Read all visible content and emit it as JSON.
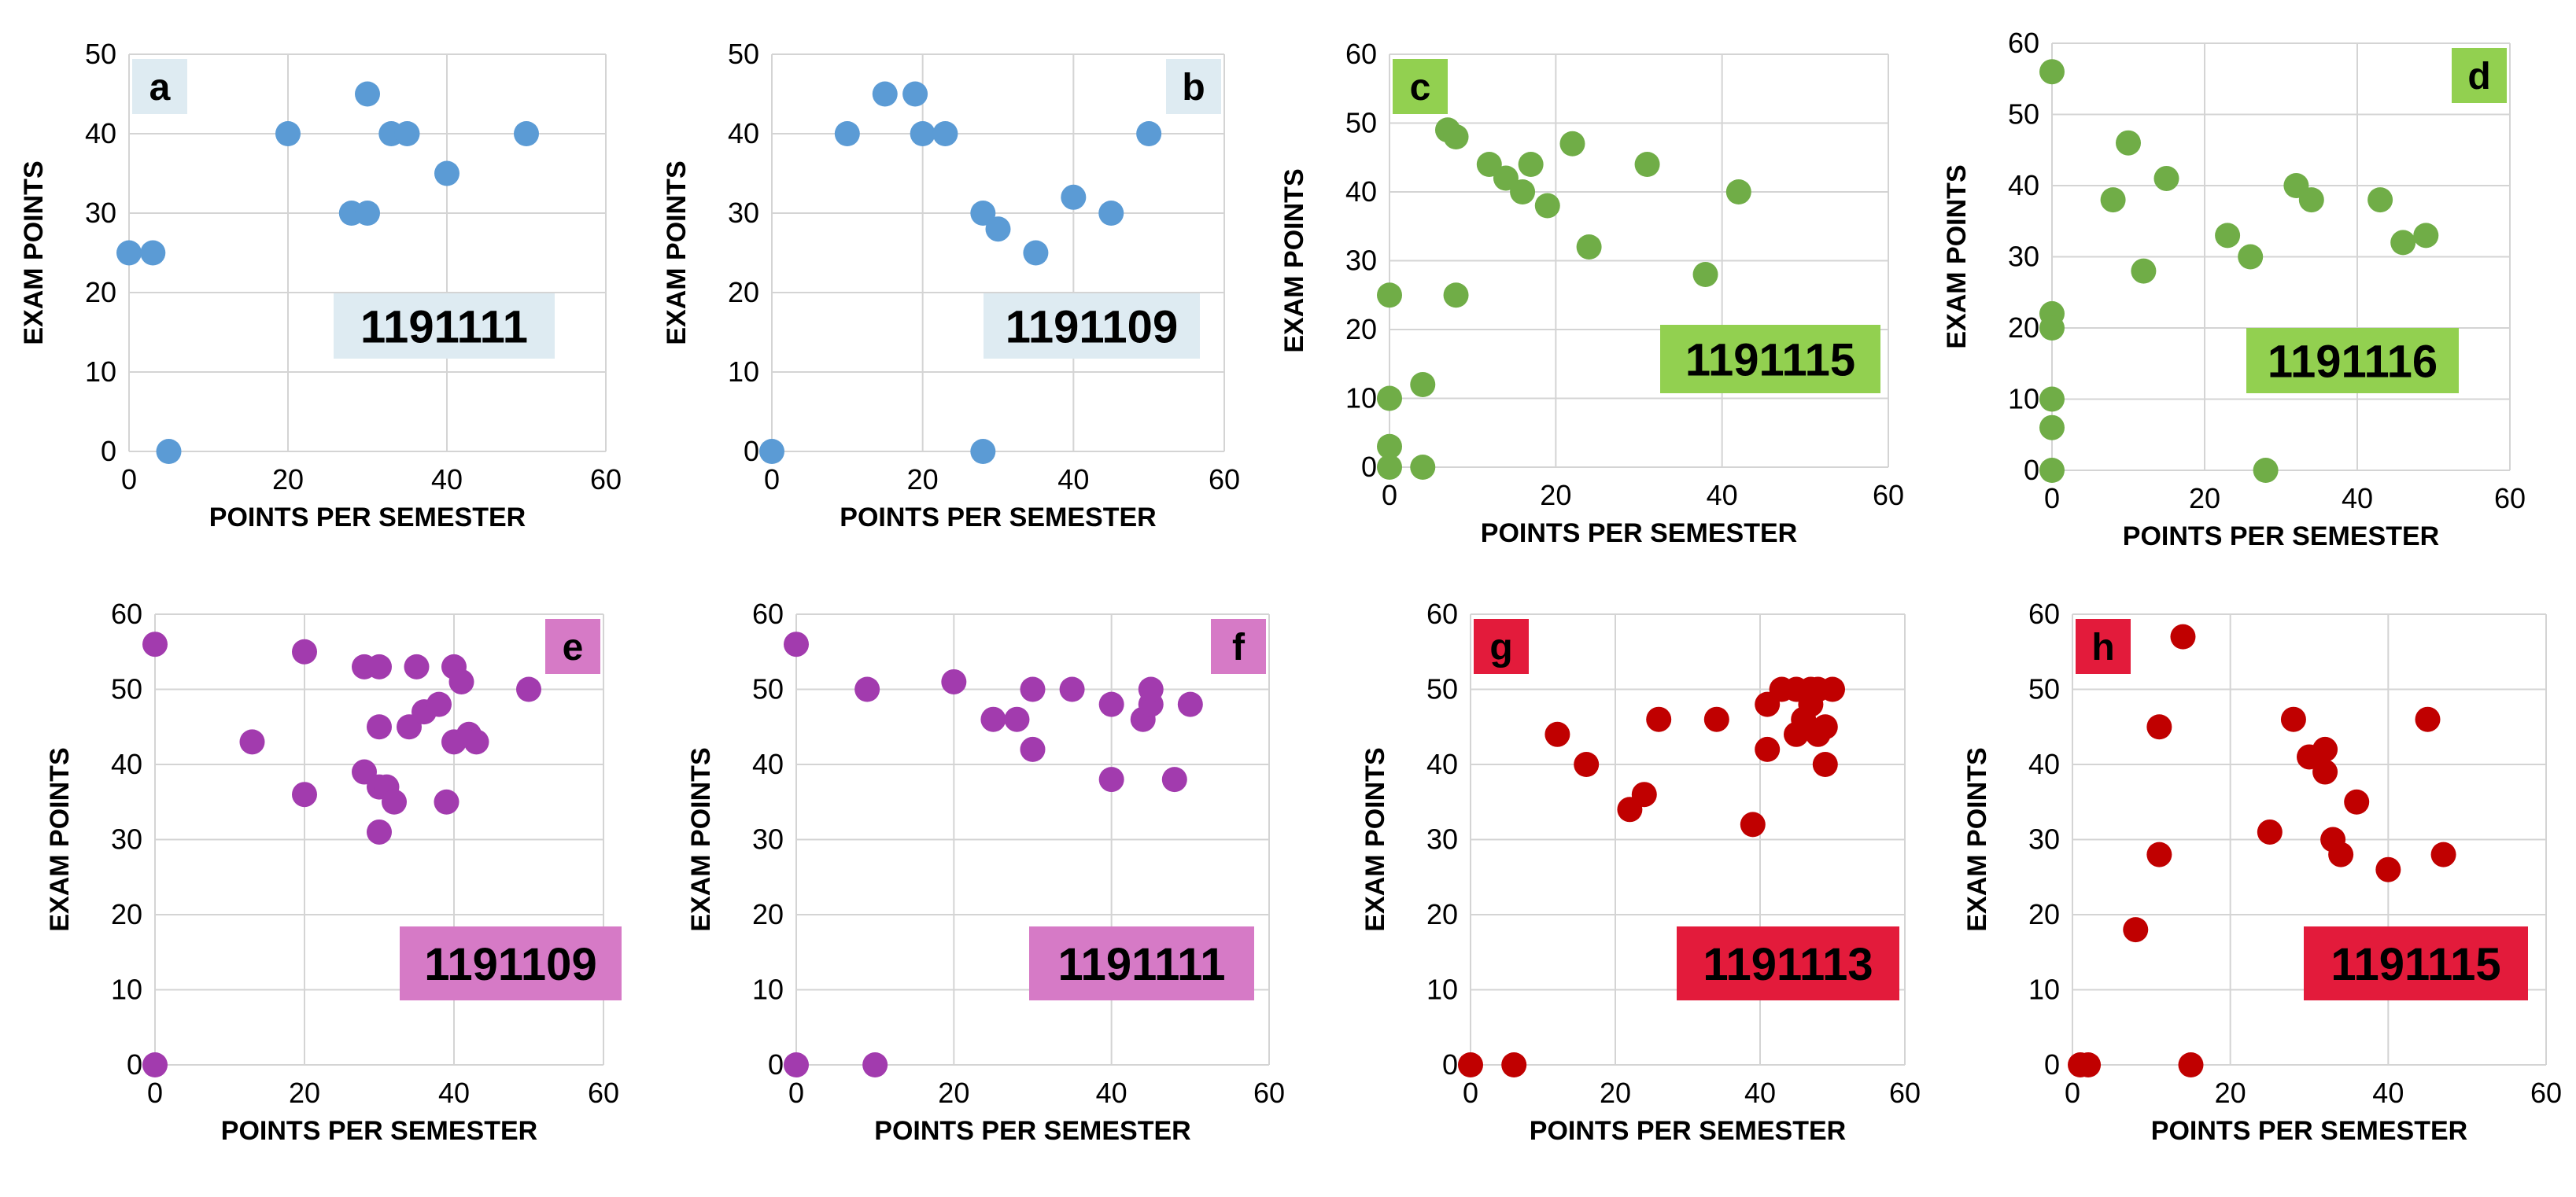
{
  "chart_data": [
    {
      "type": "scatter",
      "panel": "a",
      "class_id": "1191111",
      "color": "#5b9bd5",
      "label_bg": "#deebf2",
      "xlabel": "POINTS PER SEMESTER",
      "ylabel": "EXAM POINTS",
      "xlim": [
        0,
        60
      ],
      "ylim": [
        0,
        50
      ],
      "xticks": [
        "0",
        "20",
        "40",
        "60"
      ],
      "yticks": [
        "0",
        "10",
        "20",
        "30",
        "40",
        "50"
      ],
      "x": [
        0,
        3,
        5,
        20,
        28,
        30,
        30,
        33,
        35,
        40,
        50
      ],
      "y": [
        25,
        25,
        0,
        40,
        30,
        30,
        45,
        40,
        40,
        35,
        40
      ]
    },
    {
      "type": "scatter",
      "panel": "b",
      "class_id": "1191109",
      "color": "#5b9bd5",
      "label_bg": "#deebf2",
      "xlabel": "POINTS PER SEMESTER",
      "ylabel": "EXAM POINTS",
      "xlim": [
        0,
        60
      ],
      "ylim": [
        0,
        50
      ],
      "xticks": [
        "0",
        "20",
        "40",
        "60"
      ],
      "yticks": [
        "0",
        "10",
        "20",
        "30",
        "40",
        "50"
      ],
      "x": [
        0,
        10,
        15,
        19,
        20,
        23,
        28,
        28,
        30,
        35,
        40,
        45,
        50
      ],
      "y": [
        0,
        40,
        45,
        45,
        40,
        40,
        30,
        0,
        28,
        25,
        32,
        30,
        40
      ]
    },
    {
      "type": "scatter",
      "panel": "c",
      "class_id": "1191115",
      "color": "#70ad47",
      "label_bg": "#92d050",
      "xlabel": "POINTS PER SEMESTER",
      "ylabel": "EXAM POINTS",
      "xlim": [
        0,
        60
      ],
      "ylim": [
        0,
        60
      ],
      "xticks": [
        "0",
        "20",
        "40",
        "60"
      ],
      "yticks": [
        "0",
        "10",
        "20",
        "30",
        "40",
        "50",
        "60"
      ],
      "x": [
        0,
        0,
        0,
        0,
        4,
        4,
        7,
        8,
        8,
        12,
        14,
        16,
        17,
        19,
        22,
        24,
        31,
        38,
        42
      ],
      "y": [
        0,
        3,
        10,
        25,
        0,
        12,
        49,
        48,
        25,
        44,
        42,
        40,
        44,
        38,
        47,
        32,
        44,
        28,
        40
      ]
    },
    {
      "type": "scatter",
      "panel": "d",
      "class_id": "1191116",
      "color": "#70ad47",
      "label_bg": "#92d050",
      "xlabel": "POINTS PER SEMESTER",
      "ylabel": "EXAM POINTS",
      "xlim": [
        0,
        60
      ],
      "ylim": [
        0,
        60
      ],
      "xticks": [
        "0",
        "20",
        "40",
        "60"
      ],
      "yticks": [
        "0",
        "10",
        "20",
        "30",
        "40",
        "50",
        "60"
      ],
      "x": [
        0,
        0,
        0,
        0,
        0,
        0,
        8,
        10,
        12,
        15,
        23,
        26,
        28,
        32,
        34,
        43,
        46,
        49
      ],
      "y": [
        56,
        22,
        20,
        10,
        6,
        0,
        38,
        46,
        28,
        41,
        33,
        30,
        0,
        40,
        38,
        38,
        32,
        33
      ]
    },
    {
      "type": "scatter",
      "panel": "e",
      "class_id": "1191109",
      "color": "#a23bae",
      "label_bg": "#d67ac6",
      "xlabel": "POINTS PER SEMESTER",
      "ylabel": "EXAM POINTS",
      "xlim": [
        0,
        60
      ],
      "ylim": [
        0,
        60
      ],
      "xticks": [
        "0",
        "20",
        "40",
        "60"
      ],
      "yticks": [
        "0",
        "10",
        "20",
        "30",
        "40",
        "50",
        "60"
      ],
      "x": [
        0,
        0,
        13,
        20,
        20,
        28,
        28,
        30,
        30,
        30,
        30,
        31,
        32,
        34,
        35,
        36,
        38,
        39,
        40,
        40,
        41,
        42,
        43,
        50
      ],
      "y": [
        56,
        0,
        43,
        55,
        36,
        53,
        39,
        53,
        45,
        37,
        31,
        37,
        35,
        45,
        53,
        47,
        48,
        35,
        53,
        43,
        51,
        44,
        43,
        50
      ]
    },
    {
      "type": "scatter",
      "panel": "f",
      "class_id": "1191111",
      "color": "#a23bae",
      "label_bg": "#d67ac6",
      "xlabel": "POINTS PER SEMESTER",
      "ylabel": "EXAM POINTS",
      "xlim": [
        0,
        60
      ],
      "ylim": [
        0,
        60
      ],
      "xticks": [
        "0",
        "20",
        "40",
        "60"
      ],
      "yticks": [
        "0",
        "10",
        "20",
        "30",
        "40",
        "50",
        "60"
      ],
      "x": [
        0,
        0,
        9,
        10,
        20,
        25,
        28,
        30,
        30,
        35,
        40,
        40,
        44,
        45,
        45,
        48,
        50
      ],
      "y": [
        56,
        0,
        50,
        0,
        51,
        46,
        46,
        50,
        42,
        50,
        48,
        38,
        46,
        48,
        50,
        38,
        48
      ]
    },
    {
      "type": "scatter",
      "panel": "g",
      "class_id": "1191113",
      "color": "#c00000",
      "label_bg": "#e31b3b",
      "xlabel": "POINTS PER SEMESTER",
      "ylabel": "EXAM POINTS",
      "xlim": [
        0,
        60
      ],
      "ylim": [
        0,
        60
      ],
      "xticks": [
        "0",
        "20",
        "40",
        "60"
      ],
      "yticks": [
        "0",
        "10",
        "20",
        "30",
        "40",
        "50",
        "60"
      ],
      "x": [
        0,
        6,
        12,
        16,
        22,
        24,
        26,
        34,
        39,
        41,
        41,
        43,
        45,
        45,
        46,
        47,
        47,
        48,
        48,
        49,
        49,
        50
      ],
      "y": [
        0,
        0,
        44,
        40,
        34,
        36,
        46,
        46,
        32,
        48,
        42,
        50,
        50,
        44,
        46,
        50,
        48,
        44,
        50,
        45,
        40,
        50
      ]
    },
    {
      "type": "scatter",
      "panel": "h",
      "class_id": "1191115",
      "color": "#c00000",
      "label_bg": "#e31b3b",
      "xlabel": "POINTS PER SEMESTER",
      "ylabel": "EXAM POINTS",
      "xlim": [
        0,
        60
      ],
      "ylim": [
        0,
        60
      ],
      "xticks": [
        "0",
        "20",
        "40",
        "60"
      ],
      "yticks": [
        "0",
        "10",
        "20",
        "30",
        "40",
        "50",
        "60"
      ],
      "x": [
        1,
        2,
        8,
        11,
        11,
        14,
        15,
        25,
        28,
        30,
        32,
        32,
        33,
        34,
        36,
        40,
        45,
        47
      ],
      "y": [
        0,
        0,
        18,
        45,
        28,
        57,
        0,
        31,
        46,
        41,
        42,
        39,
        30,
        28,
        35,
        26,
        46,
        28
      ]
    }
  ]
}
